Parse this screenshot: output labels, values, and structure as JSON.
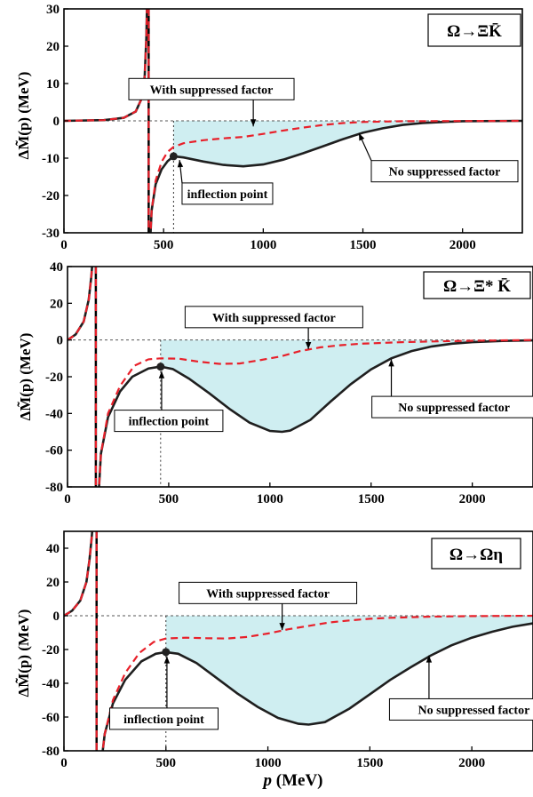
{
  "figure": {
    "xlabel_main": "p",
    "xlabel_unit": " (MeV)",
    "ylabel_main": "ΔM̃(p)",
    "ylabel_unit": "  (MeV)",
    "colors": {
      "no_factor": "#1f1f1f",
      "with_factor": "#e8202a",
      "shade": "#bfe8ec",
      "pole": "#000000"
    }
  },
  "chart_data": [
    {
      "type": "line",
      "panel_label": "Ω→ΞK̄",
      "xlim": [
        0,
        2300
      ],
      "ylim": [
        -30,
        30
      ],
      "xticks": [
        0,
        500,
        1000,
        1500,
        2000
      ],
      "yticks": [
        -30,
        -20,
        -10,
        0,
        10,
        20,
        30
      ],
      "pole_x": 425,
      "inflection": {
        "x": 550,
        "y": -9.5,
        "label": "inflection point"
      },
      "series": [
        {
          "name": "No suppressed factor",
          "style": "solid",
          "left": [
            [
              0,
              0
            ],
            [
              200,
              0.2
            ],
            [
              300,
              0.8
            ],
            [
              360,
              2.5
            ],
            [
              390,
              6
            ],
            [
              405,
              12
            ],
            [
              413,
              22
            ],
            [
              417,
              32
            ]
          ],
          "right": [
            [
              433,
              -32
            ],
            [
              440,
              -24
            ],
            [
              460,
              -17
            ],
            [
              490,
              -13
            ],
            [
              520,
              -10.8
            ],
            [
              550,
              -9.5
            ],
            [
              600,
              -9.8
            ],
            [
              700,
              -10.9
            ],
            [
              800,
              -11.8
            ],
            [
              900,
              -12.2
            ],
            [
              1000,
              -11.7
            ],
            [
              1100,
              -10.4
            ],
            [
              1200,
              -8.7
            ],
            [
              1300,
              -6.8
            ],
            [
              1400,
              -4.9
            ],
            [
              1500,
              -3.2
            ],
            [
              1600,
              -2.0
            ],
            [
              1700,
              -1.1
            ],
            [
              1800,
              -0.6
            ],
            [
              1900,
              -0.3
            ],
            [
              2000,
              -0.1
            ],
            [
              2300,
              0
            ]
          ]
        },
        {
          "name": "With suppressed factor",
          "style": "dashed",
          "left": [
            [
              0,
              0
            ],
            [
              200,
              0.2
            ],
            [
              300,
              0.8
            ],
            [
              360,
              2.5
            ],
            [
              390,
              6
            ],
            [
              405,
              12
            ],
            [
              413,
              22
            ],
            [
              417,
              32
            ]
          ],
          "right": [
            [
              433,
              -32
            ],
            [
              440,
              -24
            ],
            [
              460,
              -16
            ],
            [
              490,
              -11
            ],
            [
              520,
              -8.3
            ],
            [
              550,
              -7.0
            ],
            [
              600,
              -6.0
            ],
            [
              700,
              -5.2
            ],
            [
              800,
              -4.7
            ],
            [
              900,
              -4.3
            ],
            [
              1000,
              -3.5
            ],
            [
              1100,
              -2.6
            ],
            [
              1200,
              -1.8
            ],
            [
              1300,
              -1.1
            ],
            [
              1400,
              -0.6
            ],
            [
              1500,
              -0.3
            ],
            [
              1700,
              -0.1
            ],
            [
              2300,
              0
            ]
          ]
        }
      ],
      "annotations": [
        {
          "text": "With suppressed factor",
          "box": [
            740,
            8.5
          ],
          "arrow_to": [
            950,
            -1.5
          ]
        },
        {
          "text": "No suppressed factor",
          "box": [
            1910,
            -13.5
          ],
          "arrow_to": [
            1480,
            -3.3
          ]
        },
        {
          "text": "inflection point",
          "box": [
            820,
            -19.5
          ],
          "arrow_to": [
            580,
            -10.5
          ]
        }
      ]
    },
    {
      "type": "line",
      "panel_label": "Ω→Ξ* K̄",
      "xlim": [
        0,
        2300
      ],
      "ylim": [
        -80,
        40
      ],
      "xticks": [
        0,
        500,
        1000,
        1500,
        2000
      ],
      "yticks": [
        -80,
        -60,
        -40,
        -20,
        0,
        20,
        40
      ],
      "pole_x": 140,
      "inflection": {
        "x": 460,
        "y": -14.5,
        "label": "inflection point"
      },
      "series": [
        {
          "name": "No suppressed factor",
          "style": "solid",
          "left": [
            [
              0,
              0
            ],
            [
              40,
              3
            ],
            [
              80,
              10
            ],
            [
              105,
              22
            ],
            [
              118,
              35
            ],
            [
              124,
              44
            ]
          ],
          "right": [
            [
              153,
              -85
            ],
            [
              165,
              -62
            ],
            [
              200,
              -42
            ],
            [
              260,
              -28
            ],
            [
              320,
              -20
            ],
            [
              400,
              -15.5
            ],
            [
              460,
              -14.5
            ],
            [
              520,
              -15.8
            ],
            [
              600,
              -21
            ],
            [
              700,
              -29
            ],
            [
              800,
              -37.5
            ],
            [
              900,
              -45
            ],
            [
              1000,
              -49.5
            ],
            [
              1060,
              -50
            ],
            [
              1100,
              -49.3
            ],
            [
              1200,
              -43.5
            ],
            [
              1300,
              -33.5
            ],
            [
              1400,
              -24
            ],
            [
              1500,
              -16
            ],
            [
              1600,
              -10
            ],
            [
              1700,
              -6
            ],
            [
              1800,
              -3.5
            ],
            [
              1900,
              -2
            ],
            [
              2000,
              -1.2
            ],
            [
              2150,
              -0.5
            ],
            [
              2300,
              -0.2
            ]
          ]
        },
        {
          "name": "With suppressed factor",
          "style": "dashed",
          "left": [
            [
              0,
              0
            ],
            [
              40,
              3
            ],
            [
              80,
              10
            ],
            [
              105,
              22
            ],
            [
              118,
              35
            ],
            [
              124,
              44
            ]
          ],
          "right": [
            [
              153,
              -85
            ],
            [
              165,
              -62
            ],
            [
              200,
              -40
            ],
            [
              260,
              -25
            ],
            [
              330,
              -14
            ],
            [
              400,
              -10.5
            ],
            [
              460,
              -10
            ],
            [
              550,
              -10.2
            ],
            [
              650,
              -11.8
            ],
            [
              750,
              -13
            ],
            [
              850,
              -12.8
            ],
            [
              950,
              -11
            ],
            [
              1050,
              -9
            ],
            [
              1150,
              -6
            ],
            [
              1250,
              -4
            ],
            [
              1350,
              -2.8
            ],
            [
              1450,
              -2
            ],
            [
              1550,
              -1.6
            ],
            [
              1650,
              -1.2
            ],
            [
              1800,
              -0.8
            ],
            [
              2000,
              -0.4
            ],
            [
              2300,
              0
            ]
          ]
        }
      ],
      "annotations": [
        {
          "text": "With suppressed factor",
          "box": [
            1020,
            12.5
          ],
          "arrow_to": [
            1190,
            -5
          ]
        },
        {
          "text": "No suppressed factor",
          "box": [
            1910,
            -36.5
          ],
          "arrow_to": [
            1600,
            -10.5
          ]
        },
        {
          "text": "inflection point",
          "box": [
            500,
            -44
          ],
          "arrow_to": [
            465,
            -17
          ]
        }
      ]
    },
    {
      "type": "line",
      "panel_label": "Ω→Ωη",
      "xlim": [
        0,
        2300
      ],
      "ylim": [
        -80,
        50
      ],
      "xticks": [
        0,
        500,
        1000,
        1500,
        2000
      ],
      "yticks": [
        -80,
        -60,
        -40,
        -20,
        0,
        20,
        40
      ],
      "pole_x": 160,
      "inflection": {
        "x": 500,
        "y": -21.5,
        "label": "inflection point"
      },
      "series": [
        {
          "name": "No suppressed factor",
          "style": "solid",
          "left": [
            [
              0,
              0
            ],
            [
              40,
              3
            ],
            [
              80,
              9
            ],
            [
              110,
              20
            ],
            [
              125,
              33
            ],
            [
              135,
              45
            ],
            [
              140,
              52
            ]
          ],
          "right": [
            [
              185,
              -85
            ],
            [
              200,
              -70
            ],
            [
              240,
              -52
            ],
            [
              300,
              -38
            ],
            [
              380,
              -27
            ],
            [
              450,
              -22.5
            ],
            [
              500,
              -21.5
            ],
            [
              560,
              -22.5
            ],
            [
              650,
              -28
            ],
            [
              750,
              -37
            ],
            [
              850,
              -46
            ],
            [
              950,
              -54
            ],
            [
              1050,
              -60.5
            ],
            [
              1150,
              -64
            ],
            [
              1200,
              -64.5
            ],
            [
              1280,
              -63
            ],
            [
              1400,
              -55
            ],
            [
              1500,
              -46.5
            ],
            [
              1600,
              -38
            ],
            [
              1700,
              -30.5
            ],
            [
              1800,
              -23.5
            ],
            [
              1900,
              -17.5
            ],
            [
              2000,
              -13
            ],
            [
              2100,
              -9.5
            ],
            [
              2200,
              -6.5
            ],
            [
              2300,
              -4.5
            ]
          ]
        },
        {
          "name": "With suppressed factor",
          "style": "dashed",
          "left": [
            [
              0,
              0
            ],
            [
              40,
              3
            ],
            [
              80,
              9
            ],
            [
              110,
              20
            ],
            [
              125,
              33
            ],
            [
              135,
              45
            ],
            [
              140,
              52
            ]
          ],
          "right": [
            [
              185,
              -85
            ],
            [
              200,
              -70
            ],
            [
              240,
              -50
            ],
            [
              300,
              -34
            ],
            [
              370,
              -22
            ],
            [
              440,
              -15.5
            ],
            [
              500,
              -13.5
            ],
            [
              600,
              -13
            ],
            [
              700,
              -13.3
            ],
            [
              800,
              -13.5
            ],
            [
              900,
              -12.5
            ],
            [
              1000,
              -10.5
            ],
            [
              1100,
              -8
            ],
            [
              1200,
              -6
            ],
            [
              1300,
              -4
            ],
            [
              1400,
              -2.8
            ],
            [
              1500,
              -1.8
            ],
            [
              1600,
              -1.2
            ],
            [
              1800,
              -0.5
            ],
            [
              2000,
              -0.2
            ],
            [
              2300,
              0
            ]
          ]
        }
      ],
      "annotations": [
        {
          "text": "With suppressed factor",
          "box": [
            1000,
            13.5
          ],
          "arrow_to": [
            1070,
            -8.5
          ]
        },
        {
          "text": "No suppressed factor",
          "box": [
            2010,
            -55.5
          ],
          "arrow_to": [
            1790,
            -23.5
          ]
        },
        {
          "text": "inflection point",
          "box": [
            490,
            -61
          ],
          "arrow_to": [
            505,
            -24
          ]
        }
      ]
    }
  ]
}
